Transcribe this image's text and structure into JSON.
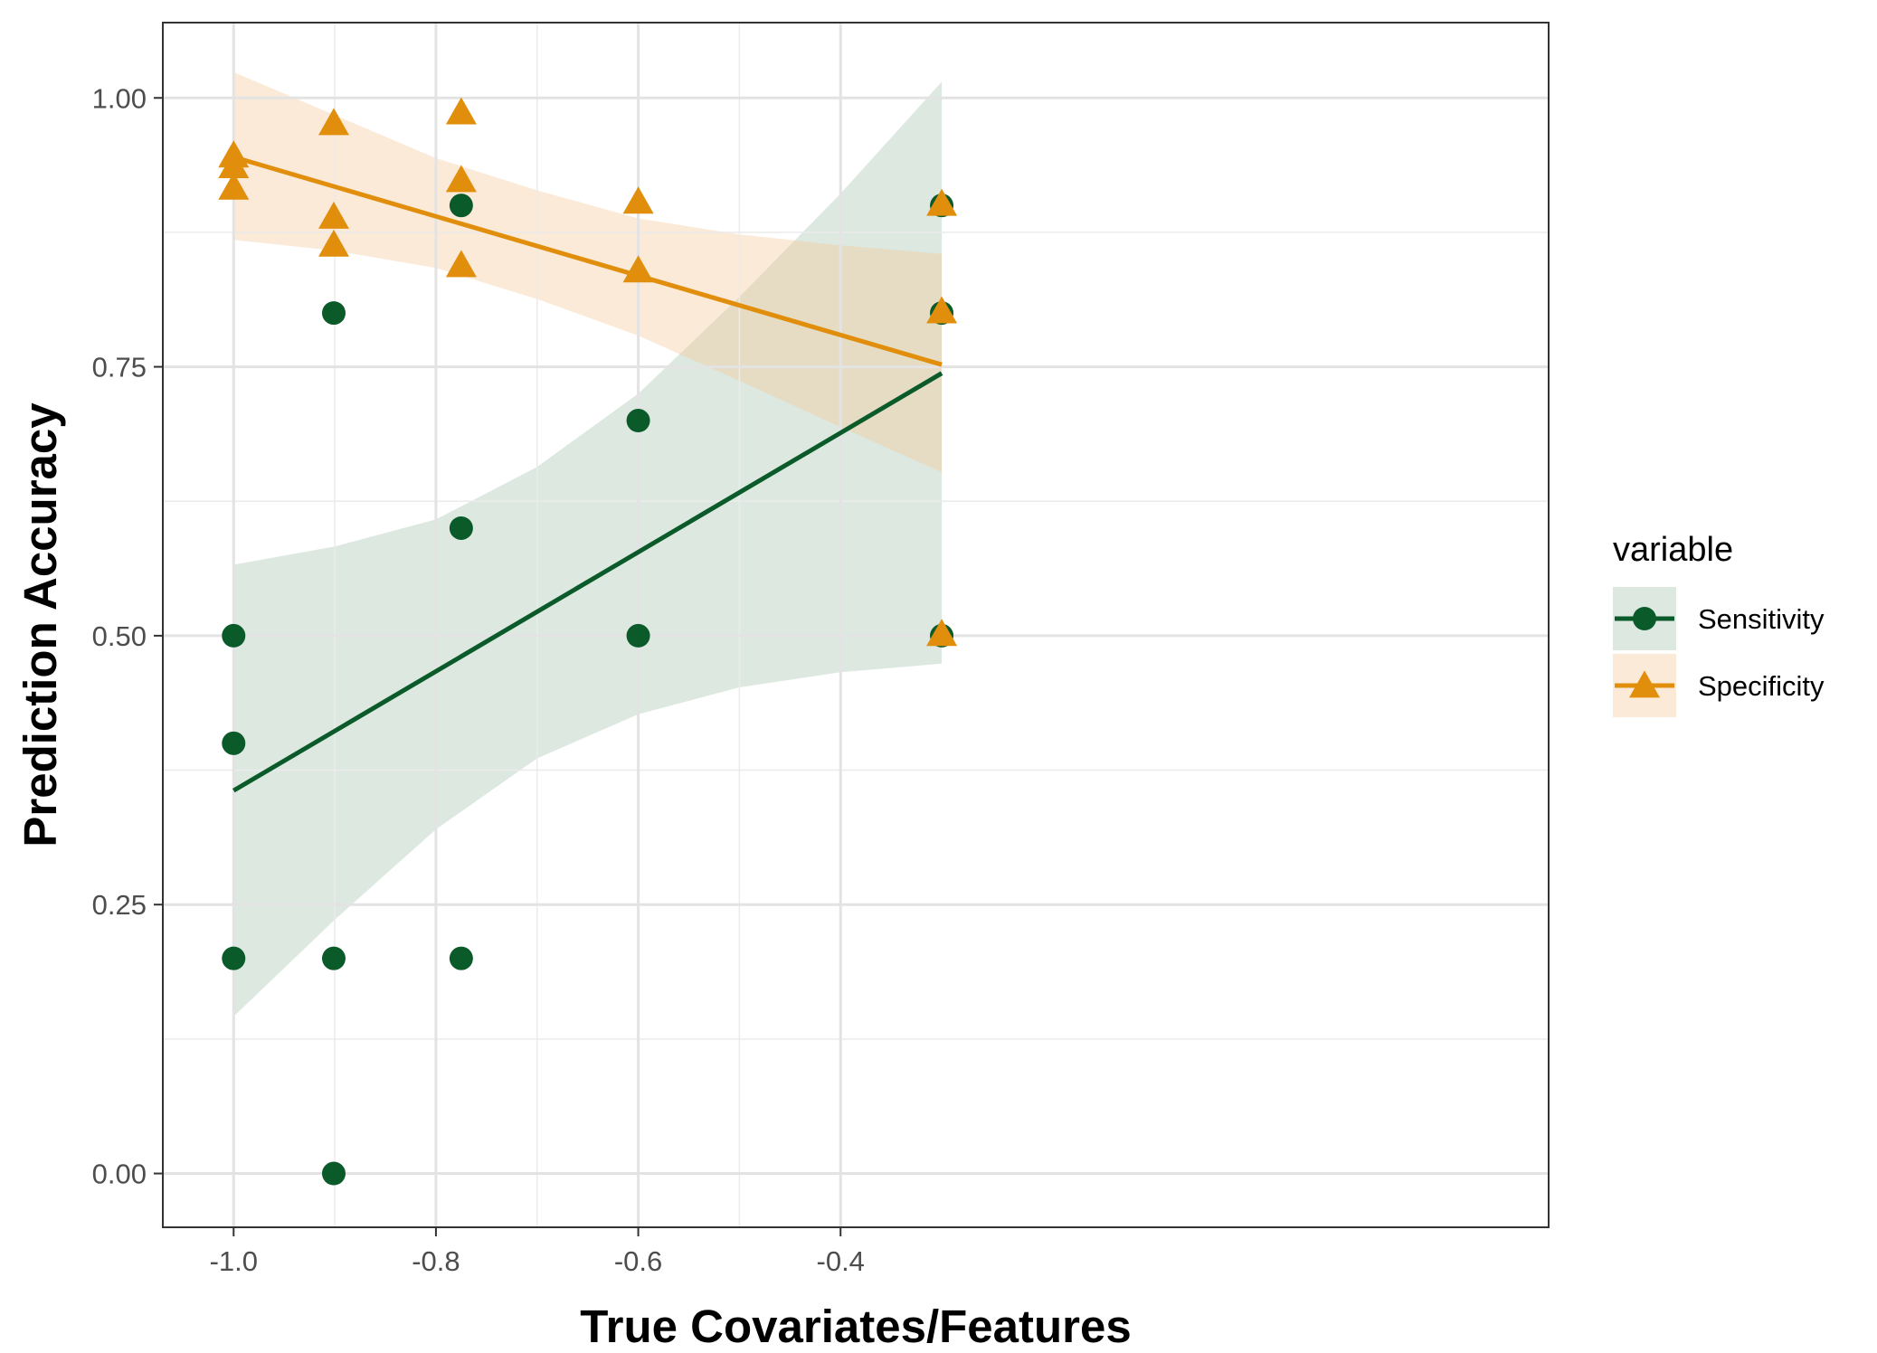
{
  "chart_data": {
    "type": "scatter",
    "xlabel": "True Covariates/Features",
    "ylabel": "Prediction Accuracy",
    "xlim": [
      -1.07,
      0.3
    ],
    "ylim": [
      -0.05,
      1.07
    ],
    "x_ticks": [
      -1.0,
      -0.8,
      -0.6,
      -0.4
    ],
    "x_tick_labels": [
      "-1.0",
      "-0.8",
      "-0.6",
      "-0.4"
    ],
    "x_minor_ticks": [
      -0.9,
      -0.7,
      -0.5
    ],
    "y_ticks": [
      0.0,
      0.25,
      0.5,
      0.75,
      1.0
    ],
    "y_tick_labels": [
      "0.00",
      "0.25",
      "0.50",
      "0.75",
      "1.00"
    ],
    "y_minor_ticks": [
      0.125,
      0.375,
      0.625,
      0.875
    ],
    "grid": true,
    "legend": {
      "title": "variable",
      "position": "right"
    },
    "series": [
      {
        "name": "Sensitivity",
        "marker": "circle",
        "color": "#0b5a2a",
        "band_color": "#0b5a2a",
        "points": [
          {
            "x": -1.0,
            "y": 0.5
          },
          {
            "x": -1.0,
            "y": 0.4
          },
          {
            "x": -1.0,
            "y": 0.2
          },
          {
            "x": -0.901,
            "y": 0.8
          },
          {
            "x": -0.901,
            "y": 0.2
          },
          {
            "x": -0.901,
            "y": 0.0
          },
          {
            "x": -0.775,
            "y": 0.9
          },
          {
            "x": -0.775,
            "y": 0.6
          },
          {
            "x": -0.775,
            "y": 0.2
          },
          {
            "x": -0.6,
            "y": 0.7
          },
          {
            "x": -0.6,
            "y": 0.5
          },
          {
            "x": -0.3,
            "y": 0.9
          },
          {
            "x": -0.3,
            "y": 0.8
          },
          {
            "x": -0.3,
            "y": 0.5
          }
        ],
        "fit_line": [
          {
            "x": -1.0,
            "y": 0.356
          },
          {
            "x": -0.3,
            "y": 0.744
          }
        ],
        "confidence_band": [
          {
            "x": -1.0,
            "lower": 0.146,
            "upper": 0.566
          },
          {
            "x": -0.9,
            "lower": 0.236,
            "upper": 0.583
          },
          {
            "x": -0.8,
            "lower": 0.32,
            "upper": 0.608
          },
          {
            "x": -0.7,
            "lower": 0.386,
            "upper": 0.657
          },
          {
            "x": -0.6,
            "lower": 0.427,
            "upper": 0.725
          },
          {
            "x": -0.5,
            "lower": 0.452,
            "upper": 0.815
          },
          {
            "x": -0.4,
            "lower": 0.466,
            "upper": 0.911
          },
          {
            "x": -0.3,
            "lower": 0.474,
            "upper": 1.015
          }
        ]
      },
      {
        "name": "Specificity",
        "marker": "triangle",
        "color": "#e08e0b",
        "band_color": "#f5c896",
        "points": [
          {
            "x": -1.0,
            "y": 0.945
          },
          {
            "x": -1.0,
            "y": 0.935
          },
          {
            "x": -1.0,
            "y": 0.915
          },
          {
            "x": -0.901,
            "y": 0.975
          },
          {
            "x": -0.901,
            "y": 0.888
          },
          {
            "x": -0.901,
            "y": 0.862
          },
          {
            "x": -0.775,
            "y": 0.985
          },
          {
            "x": -0.775,
            "y": 0.922
          },
          {
            "x": -0.775,
            "y": 0.843
          },
          {
            "x": -0.6,
            "y": 0.902
          },
          {
            "x": -0.6,
            "y": 0.838
          },
          {
            "x": -0.3,
            "y": 0.9
          },
          {
            "x": -0.3,
            "y": 0.8
          },
          {
            "x": -0.3,
            "y": 0.5
          }
        ],
        "fit_line": [
          {
            "x": -1.0,
            "y": 0.945
          },
          {
            "x": -0.3,
            "y": 0.752
          }
        ],
        "confidence_band": [
          {
            "x": -1.0,
            "lower": 0.868,
            "upper": 1.024
          },
          {
            "x": -0.9,
            "lower": 0.858,
            "upper": 0.984
          },
          {
            "x": -0.8,
            "lower": 0.842,
            "upper": 0.944
          },
          {
            "x": -0.7,
            "lower": 0.813,
            "upper": 0.914
          },
          {
            "x": -0.6,
            "lower": 0.779,
            "upper": 0.888
          },
          {
            "x": -0.5,
            "lower": 0.737,
            "upper": 0.873
          },
          {
            "x": -0.4,
            "lower": 0.694,
            "upper": 0.863
          },
          {
            "x": -0.3,
            "lower": 0.652,
            "upper": 0.855
          }
        ]
      }
    ]
  }
}
